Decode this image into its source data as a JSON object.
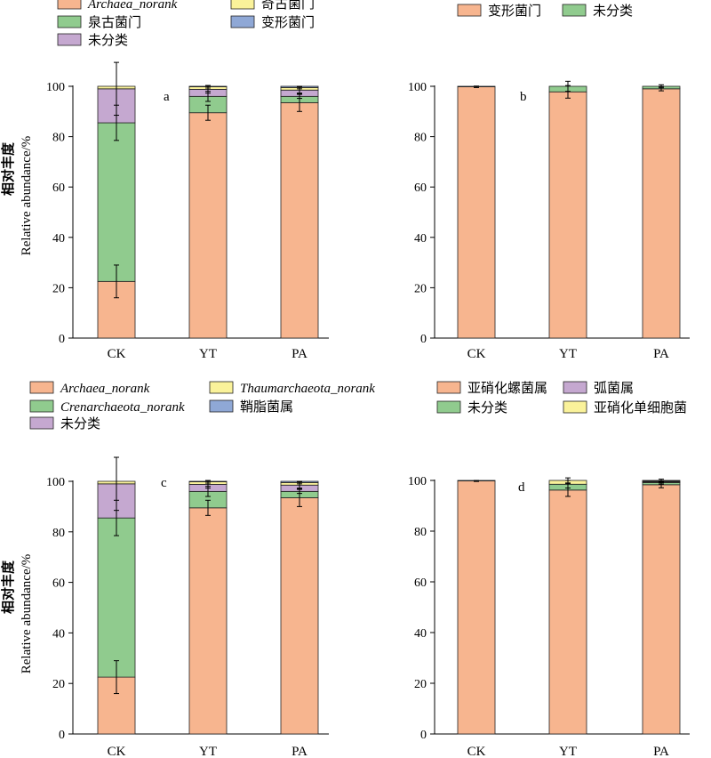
{
  "colors": {
    "archaea": "#F7B58F",
    "crena": "#90CB8E",
    "unclass": "#C5A8D0",
    "thaum": "#FAF29A",
    "blue": "#8FA8D6",
    "dark": "#333333"
  },
  "chart_data": [
    {
      "id": "a",
      "type": "bar",
      "stacked": true,
      "panel_label": "a",
      "ylabel": "Relative abundance/%",
      "ylabel_cn": "相对丰度",
      "categories": [
        "CK",
        "YT",
        "PA"
      ],
      "ylim": [
        0,
        100
      ],
      "yticks": [
        0,
        20,
        40,
        60,
        80,
        100
      ],
      "legend": [
        {
          "label": "Archaea_norank",
          "italic": true,
          "color": "#F7B58F"
        },
        {
          "label": "奇古菌门",
          "italic": false,
          "color": "#FAF29A"
        },
        {
          "label": "泉古菌门",
          "italic": false,
          "color": "#90CB8E"
        },
        {
          "label": "变形菌门",
          "italic": false,
          "color": "#8FA8D6"
        },
        {
          "label": "未分类",
          "italic": false,
          "color": "#C5A8D0"
        }
      ],
      "series": [
        {
          "name": "Archaea_norank",
          "color": "#F7B58F",
          "values": [
            22.5,
            89.5,
            93.5
          ],
          "errors": [
            6.5,
            3,
            3.5
          ]
        },
        {
          "name": "泉古菌门",
          "color": "#90CB8E",
          "values": [
            63,
            6.5,
            2.5
          ],
          "errors": [
            7,
            2,
            0.8
          ]
        },
        {
          "name": "未分类",
          "color": "#C5A8D0",
          "values": [
            13.5,
            2.8,
            2.5
          ],
          "errors": [
            10.5,
            1.5,
            1.2
          ]
        },
        {
          "name": "奇古菌门",
          "color": "#FAF29A",
          "values": [
            1,
            1,
            1
          ],
          "errors": [
            0,
            0.5,
            0.5
          ]
        },
        {
          "name": "变形菌门",
          "color": "#8FA8D6",
          "values": [
            0,
            0.2,
            0.5
          ],
          "errors": [
            0,
            0,
            0
          ]
        }
      ]
    },
    {
      "id": "b",
      "type": "bar",
      "stacked": true,
      "panel_label": "b",
      "ylabel": "",
      "ylabel_cn": "",
      "categories": [
        "CK",
        "YT",
        "PA"
      ],
      "ylim": [
        0,
        100
      ],
      "yticks": [
        0,
        20,
        40,
        60,
        80,
        100
      ],
      "legend": [
        {
          "label": "变形菌门",
          "italic": false,
          "color": "#F7B58F"
        },
        {
          "label": "未分类",
          "italic": false,
          "color": "#90CB8E"
        }
      ],
      "series": [
        {
          "name": "变形菌门",
          "color": "#F7B58F",
          "values": [
            99.8,
            97.8,
            99
          ],
          "errors": [
            0.3,
            2.5,
            0.8
          ]
        },
        {
          "name": "未分类",
          "color": "#90CB8E",
          "values": [
            0.2,
            2.2,
            1
          ],
          "errors": [
            0,
            2,
            0.6
          ]
        }
      ]
    },
    {
      "id": "c",
      "type": "bar",
      "stacked": true,
      "panel_label": "c",
      "ylabel": "Relative abundance/%",
      "ylabel_cn": "相对丰度",
      "categories": [
        "CK",
        "YT",
        "PA"
      ],
      "ylim": [
        0,
        100
      ],
      "yticks": [
        0,
        20,
        40,
        60,
        80,
        100
      ],
      "legend": [
        {
          "label": "Archaea_norank",
          "italic": true,
          "color": "#F7B58F"
        },
        {
          "label": "Thaumarchaeota_norank",
          "italic": true,
          "color": "#FAF29A"
        },
        {
          "label": "Crenarchaeota_norank",
          "italic": true,
          "color": "#90CB8E"
        },
        {
          "label": "鞘脂菌属",
          "italic": false,
          "color": "#8FA8D6"
        },
        {
          "label": "未分类",
          "italic": false,
          "color": "#C5A8D0"
        }
      ],
      "series": [
        {
          "name": "Archaea_norank",
          "color": "#F7B58F",
          "values": [
            22.5,
            89.5,
            93.5
          ],
          "errors": [
            6.5,
            3,
            3.5
          ]
        },
        {
          "name": "Crenarchaeota_norank",
          "color": "#90CB8E",
          "values": [
            63,
            6.5,
            2.5
          ],
          "errors": [
            7,
            2,
            0.8
          ]
        },
        {
          "name": "未分类",
          "color": "#C5A8D0",
          "values": [
            13.5,
            2.8,
            2.5
          ],
          "errors": [
            10.5,
            1.5,
            1.2
          ]
        },
        {
          "name": "Thaumarchaeota_norank",
          "color": "#FAF29A",
          "values": [
            1,
            1,
            1
          ],
          "errors": [
            0,
            0.5,
            0.5
          ]
        },
        {
          "name": "鞘脂菌属",
          "color": "#8FA8D6",
          "values": [
            0,
            0.2,
            0.5
          ],
          "errors": [
            0,
            0,
            0
          ]
        }
      ]
    },
    {
      "id": "d",
      "type": "bar",
      "stacked": true,
      "panel_label": "d",
      "ylabel": "",
      "ylabel_cn": "",
      "categories": [
        "CK",
        "YT",
        "PA"
      ],
      "ylim": [
        0,
        100
      ],
      "yticks": [
        0,
        20,
        40,
        60,
        80,
        100
      ],
      "legend": [
        {
          "label": "亚硝化螺菌属",
          "italic": false,
          "color": "#F7B58F"
        },
        {
          "label": "弧菌属",
          "italic": false,
          "color": "#C5A8D0"
        },
        {
          "label": "未分类",
          "italic": false,
          "color": "#90CB8E"
        },
        {
          "label": "亚硝化单细胞菌",
          "italic": false,
          "color": "#FAF29A"
        }
      ],
      "series": [
        {
          "name": "亚硝化螺菌属",
          "color": "#F7B58F",
          "values": [
            99.8,
            96.2,
            98.3
          ],
          "errors": [
            0.2,
            2.5,
            1.2
          ]
        },
        {
          "name": "未分类",
          "color": "#90CB8E",
          "values": [
            0.2,
            2.3,
            0.8
          ],
          "errors": [
            0,
            1.5,
            0.5
          ]
        },
        {
          "name": "亚硝化单细胞菌",
          "color": "#FAF29A",
          "values": [
            0,
            1.5,
            0.3
          ],
          "errors": [
            0,
            1,
            0.3
          ]
        },
        {
          "name": "弧菌属",
          "color": "#C5A8D0",
          "values": [
            0,
            0,
            0.3
          ],
          "errors": [
            0,
            0,
            0
          ]
        },
        {
          "name": "dark",
          "color": "#333333",
          "values": [
            0,
            0,
            0.3
          ],
          "errors": [
            0,
            0,
            0.5
          ]
        }
      ]
    }
  ]
}
